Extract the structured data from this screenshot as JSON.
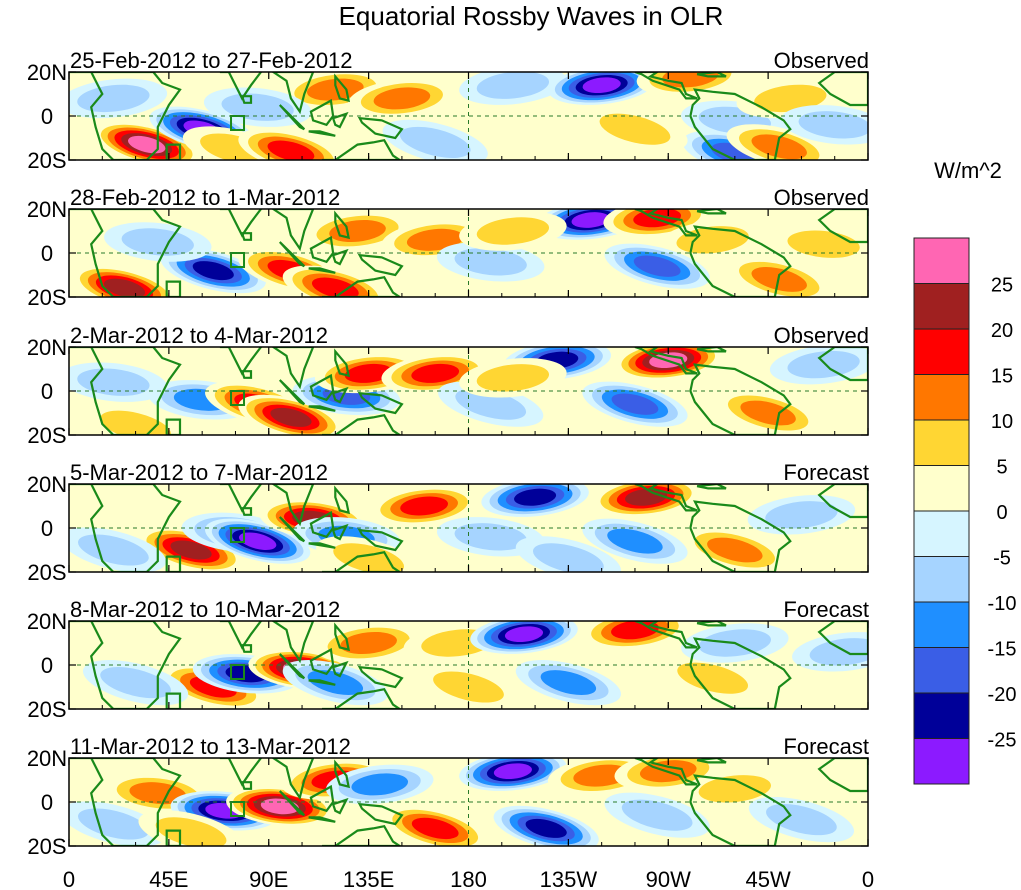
{
  "chart_data": {
    "type": "heatmap",
    "title": "Equatorial Rossby Waves in OLR",
    "colorbar_unit": "W/m^2",
    "colorbar_levels": [
      "25",
      "20",
      "15",
      "10",
      "5",
      "0",
      "-5",
      "-10",
      "-15",
      "-20",
      "-25"
    ],
    "colorbar_colors": [
      "#ff66b3",
      "#a02020",
      "#ff0000",
      "#ff7700",
      "#ffd633",
      "#ffffcc",
      "#d6f5ff",
      "#a6d4ff",
      "#1f8fff",
      "#3a5ee6",
      "#000099",
      "#8c1aff"
    ],
    "x_axis": {
      "ticks": [
        "0",
        "45E",
        "90E",
        "135E",
        "180",
        "135W",
        "90W",
        "45W",
        "0"
      ],
      "lon_values": [
        0,
        45,
        90,
        135,
        180,
        225,
        270,
        315,
        360
      ],
      "range": [
        0,
        360
      ]
    },
    "y_axis": {
      "ticks": [
        "20N",
        "0",
        "20S"
      ],
      "lat_values": [
        20,
        0,
        -20
      ],
      "range": [
        -20,
        20
      ]
    },
    "panels": [
      {
        "dates": "25-Feb-2012 to 27-Feb-2012",
        "status": "Observed",
        "blobs": [
          {
            "lon": 35,
            "lat": -13,
            "v": 30
          },
          {
            "lon": 60,
            "lat": -6,
            "v": -26
          },
          {
            "lon": 75,
            "lat": -15,
            "v": 10
          },
          {
            "lon": 100,
            "lat": -16,
            "v": 20
          },
          {
            "lon": 120,
            "lat": 12,
            "v": 14
          },
          {
            "lon": 150,
            "lat": 8,
            "v": 12
          },
          {
            "lon": 165,
            "lat": -12,
            "v": -10
          },
          {
            "lon": 200,
            "lat": 14,
            "v": -8
          },
          {
            "lon": 240,
            "lat": 14,
            "v": -28
          },
          {
            "lon": 280,
            "lat": 18,
            "v": 15
          },
          {
            "lon": 300,
            "lat": -2,
            "v": -8
          },
          {
            "lon": 300,
            "lat": -17,
            "v": -20
          },
          {
            "lon": 320,
            "lat": -14,
            "v": 14
          },
          {
            "lon": 325,
            "lat": 8,
            "v": 8
          },
          {
            "lon": 20,
            "lat": 8,
            "v": -6
          },
          {
            "lon": 85,
            "lat": 4,
            "v": -8
          },
          {
            "lon": 255,
            "lat": -6,
            "v": 6
          },
          {
            "lon": 345,
            "lat": -4,
            "v": -6
          }
        ]
      },
      {
        "dates": "28-Feb-2012 to 1-Mar-2012",
        "status": "Observed",
        "blobs": [
          {
            "lon": 25,
            "lat": -16,
            "v": 22
          },
          {
            "lon": 65,
            "lat": -8,
            "v": -24
          },
          {
            "lon": 100,
            "lat": -8,
            "v": 20
          },
          {
            "lon": 120,
            "lat": -16,
            "v": 16
          },
          {
            "lon": 130,
            "lat": 10,
            "v": 12
          },
          {
            "lon": 165,
            "lat": 6,
            "v": 14
          },
          {
            "lon": 190,
            "lat": -4,
            "v": -8
          },
          {
            "lon": 235,
            "lat": 15,
            "v": -28
          },
          {
            "lon": 265,
            "lat": 16,
            "v": 20
          },
          {
            "lon": 290,
            "lat": 6,
            "v": 6
          },
          {
            "lon": 265,
            "lat": -6,
            "v": -18
          },
          {
            "lon": 320,
            "lat": -12,
            "v": 14
          },
          {
            "lon": 40,
            "lat": 5,
            "v": -8
          },
          {
            "lon": 340,
            "lat": 4,
            "v": 6
          },
          {
            "lon": 200,
            "lat": 10,
            "v": 6
          }
        ]
      },
      {
        "dates": "2-Mar-2012 to 4-Mar-2012",
        "status": "Observed",
        "blobs": [
          {
            "lon": 30,
            "lat": -16,
            "v": 8
          },
          {
            "lon": 60,
            "lat": -4,
            "v": -14
          },
          {
            "lon": 85,
            "lat": -6,
            "v": 16
          },
          {
            "lon": 100,
            "lat": -12,
            "v": 22
          },
          {
            "lon": 125,
            "lat": -2,
            "v": -16
          },
          {
            "lon": 135,
            "lat": 8,
            "v": 18
          },
          {
            "lon": 165,
            "lat": 8,
            "v": 20
          },
          {
            "lon": 190,
            "lat": -6,
            "v": -10
          },
          {
            "lon": 220,
            "lat": 14,
            "v": -24
          },
          {
            "lon": 270,
            "lat": 14,
            "v": 26
          },
          {
            "lon": 255,
            "lat": -6,
            "v": -18
          },
          {
            "lon": 315,
            "lat": -10,
            "v": 14
          },
          {
            "lon": 340,
            "lat": 12,
            "v": -6
          },
          {
            "lon": 200,
            "lat": 6,
            "v": 6
          },
          {
            "lon": 20,
            "lat": 4,
            "v": -6
          }
        ]
      },
      {
        "dates": "5-Mar-2012 to 7-Mar-2012",
        "status": "Forecast",
        "blobs": [
          {
            "lon": 55,
            "lat": -10,
            "v": 22
          },
          {
            "lon": 75,
            "lat": -2,
            "v": -14
          },
          {
            "lon": 85,
            "lat": -6,
            "v": -26
          },
          {
            "lon": 110,
            "lat": 4,
            "v": 22
          },
          {
            "lon": 125,
            "lat": -4,
            "v": -14
          },
          {
            "lon": 160,
            "lat": 10,
            "v": 16
          },
          {
            "lon": 190,
            "lat": -4,
            "v": -10
          },
          {
            "lon": 210,
            "lat": 14,
            "v": -24
          },
          {
            "lon": 260,
            "lat": 14,
            "v": 22
          },
          {
            "lon": 255,
            "lat": -6,
            "v": -14
          },
          {
            "lon": 300,
            "lat": -10,
            "v": 14
          },
          {
            "lon": 330,
            "lat": 6,
            "v": -8
          },
          {
            "lon": 20,
            "lat": -10,
            "v": -8
          },
          {
            "lon": 135,
            "lat": -14,
            "v": 10
          },
          {
            "lon": 225,
            "lat": -14,
            "v": -8
          }
        ]
      },
      {
        "dates": "8-Mar-2012 to 10-Mar-2012",
        "status": "Forecast",
        "blobs": [
          {
            "lon": 65,
            "lat": -10,
            "v": 20
          },
          {
            "lon": 80,
            "lat": -4,
            "v": -24
          },
          {
            "lon": 105,
            "lat": -2,
            "v": 26
          },
          {
            "lon": 120,
            "lat": -8,
            "v": -12
          },
          {
            "lon": 135,
            "lat": 10,
            "v": 14
          },
          {
            "lon": 175,
            "lat": 10,
            "v": 10
          },
          {
            "lon": 205,
            "lat": 14,
            "v": -26
          },
          {
            "lon": 255,
            "lat": 16,
            "v": 20
          },
          {
            "lon": 225,
            "lat": -8,
            "v": -12
          },
          {
            "lon": 290,
            "lat": -6,
            "v": 10
          },
          {
            "lon": 350,
            "lat": 6,
            "v": -8
          },
          {
            "lon": 30,
            "lat": -8,
            "v": -10
          },
          {
            "lon": 180,
            "lat": -10,
            "v": 8
          },
          {
            "lon": 300,
            "lat": 10,
            "v": -6
          }
        ]
      },
      {
        "dates": "11-Mar-2012 to 13-Mar-2012",
        "status": "Forecast",
        "blobs": [
          {
            "lon": 40,
            "lat": 4,
            "v": 14
          },
          {
            "lon": 70,
            "lat": -4,
            "v": -26
          },
          {
            "lon": 95,
            "lat": -2,
            "v": 28
          },
          {
            "lon": 120,
            "lat": 10,
            "v": 20
          },
          {
            "lon": 140,
            "lat": 8,
            "v": -12
          },
          {
            "lon": 165,
            "lat": -12,
            "v": 16
          },
          {
            "lon": 200,
            "lat": 14,
            "v": -28
          },
          {
            "lon": 215,
            "lat": -12,
            "v": -22
          },
          {
            "lon": 240,
            "lat": 12,
            "v": 14
          },
          {
            "lon": 270,
            "lat": 14,
            "v": 12
          },
          {
            "lon": 300,
            "lat": 6,
            "v": 10
          },
          {
            "lon": 265,
            "lat": -6,
            "v": -8
          },
          {
            "lon": 330,
            "lat": -8,
            "v": -6
          },
          {
            "lon": 20,
            "lat": -10,
            "v": -8
          },
          {
            "lon": 55,
            "lat": -14,
            "v": 10
          }
        ]
      }
    ]
  }
}
